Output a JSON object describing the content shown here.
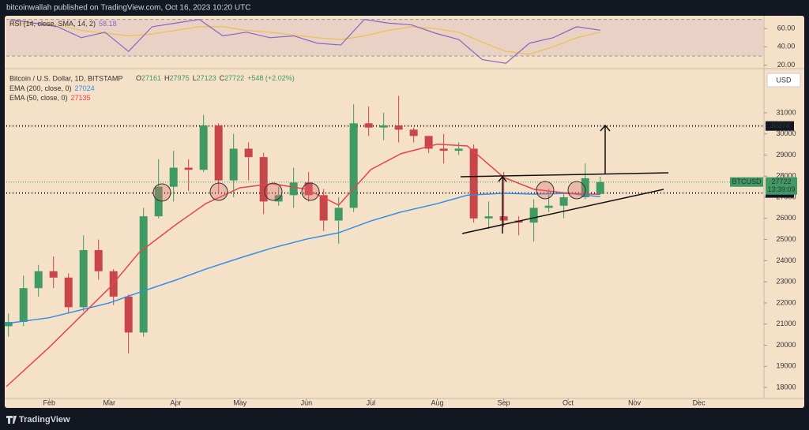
{
  "header": "bitcoinwallah published on TradingView.com, Oct 16, 2023 10:20 UTC",
  "footer": "TradingView",
  "chart_data": [
    {
      "type": "candlestick",
      "title": "Bitcoin / U.S. Dollar, 1D, BITSTAMP",
      "ohlc": [
        {
          "label": "O",
          "value": 27161
        },
        {
          "label": "H",
          "value": 27975
        },
        {
          "label": "L",
          "value": 27123
        },
        {
          "label": "C",
          "value": 27722
        }
      ],
      "change": "+548 (+2.02%)",
      "currency": "USD",
      "up_color": "#3f9a64",
      "down_color": "#c8454a",
      "x": [
        12,
        19,
        26,
        33,
        40,
        47,
        54,
        61,
        68,
        75,
        82,
        89,
        96,
        103,
        110,
        117,
        124,
        131,
        138,
        145,
        152,
        159,
        166,
        173,
        180,
        187,
        194,
        201,
        208,
        215,
        222,
        229,
        236,
        243,
        250,
        257,
        264,
        271,
        281,
        288
      ],
      "open": [
        20900,
        21100,
        22700,
        23500,
        23200,
        21800,
        24500,
        23500,
        22300,
        20600,
        26100,
        27500,
        28400,
        28300,
        30400,
        27800,
        29300,
        28900,
        26800,
        27100,
        27700,
        27100,
        25900,
        26500,
        30500,
        30300,
        30400,
        30200,
        29900,
        29300,
        29200,
        29300,
        26000,
        26100,
        25900,
        25800,
        26500,
        26600,
        27000,
        27161
      ],
      "high": [
        21500,
        23300,
        23800,
        24200,
        23400,
        25200,
        25000,
        23600,
        22400,
        26500,
        28800,
        29200,
        28800,
        30900,
        30500,
        30000,
        29600,
        29100,
        27500,
        28400,
        28200,
        27400,
        27000,
        31400,
        31300,
        31000,
        31800,
        30300,
        29900,
        30000,
        29600,
        29500,
        26800,
        28200,
        26100,
        26900,
        27400,
        27200,
        28600,
        27975
      ],
      "low": [
        20400,
        20900,
        22300,
        22700,
        21500,
        21600,
        23100,
        21900,
        19600,
        20400,
        26000,
        26800,
        27300,
        28200,
        27200,
        27000,
        27800,
        26200,
        26600,
        26500,
        26800,
        25400,
        24800,
        26300,
        29900,
        29700,
        29600,
        29600,
        29100,
        28600,
        29000,
        25800,
        25500,
        25600,
        25200,
        24900,
        26300,
        26000,
        26900,
        27123
      ],
      "close": [
        21100,
        22700,
        23500,
        23200,
        21800,
        24500,
        23500,
        22300,
        20600,
        26100,
        27500,
        28400,
        28300,
        30400,
        27800,
        29300,
        28900,
        26800,
        27100,
        27700,
        27100,
        25900,
        26500,
        30500,
        30300,
        30400,
        30200,
        29900,
        29300,
        29200,
        29300,
        26000,
        26100,
        25900,
        25800,
        26500,
        26600,
        27000,
        27900,
        27722
      ],
      "series": [
        {
          "name": "EMA (200, close, 0)",
          "last_value": 27024,
          "color": "#2f8fe8",
          "x": [
            11,
            31,
            59,
            73,
            90,
            104,
            120,
            135,
            151,
            166,
            181,
            195,
            212,
            226,
            243,
            257,
            273,
            288
          ],
          "values": [
            21026,
            21300,
            22000,
            22500,
            23080,
            23600,
            24130,
            24600,
            25020,
            25320,
            25880,
            26300,
            26700,
            27100,
            27190,
            27150,
            27190,
            27024
          ]
        },
        {
          "name": "EMA (50, close, 0)",
          "last_value": 27135,
          "color": "#e8434e",
          "x": [
            11,
            31,
            59,
            73,
            90,
            104,
            120,
            135,
            151,
            166,
            181,
            195,
            212,
            226,
            243,
            257,
            273,
            288
          ],
          "values": [
            18040,
            19900,
            22700,
            24390,
            25700,
            26700,
            27450,
            27640,
            27380,
            26630,
            28310,
            29060,
            29510,
            29430,
            27940,
            27380,
            27190,
            27135
          ]
        }
      ],
      "hlines": [
        30374,
        27203
      ],
      "last_price": {
        "symbol": "BTCUSD",
        "value": 27722,
        "countdown": "13:39:09"
      },
      "xlim": [
        11,
        364
      ],
      "ylim": [
        17480,
        33050
      ],
      "xticks": [
        {
          "value": 31,
          "label": "Feb"
        },
        {
          "value": 59,
          "label": "Mar"
        },
        {
          "value": 90,
          "label": "Apr"
        },
        {
          "value": 120,
          "label": "May"
        },
        {
          "value": 151,
          "label": "Jun"
        },
        {
          "value": 181,
          "label": "Jul"
        },
        {
          "value": 212,
          "label": "Aug"
        },
        {
          "value": 243,
          "label": "Sep"
        },
        {
          "value": 273,
          "label": "Oct"
        },
        {
          "value": 304,
          "label": "Nov"
        },
        {
          "value": 334,
          "label": "Dec"
        }
      ],
      "yticks": [
        18000,
        19000,
        20000,
        21000,
        22000,
        23000,
        24000,
        25000,
        26000,
        27000,
        28000,
        29000,
        30000,
        31000
      ]
    },
    {
      "type": "line",
      "title": "RSI (14, close, SMA, 14, 2)",
      "last_value": 58.18,
      "band": [
        30,
        70
      ],
      "band_color": "#e3c6c4",
      "x": [
        13,
        24,
        35,
        46,
        57,
        68,
        79,
        90,
        101,
        112,
        123,
        134,
        145,
        156,
        167,
        178,
        189,
        200,
        211,
        222,
        233,
        244,
        255,
        266,
        277,
        288
      ],
      "series": [
        {
          "name": "RSI",
          "color": "#8a63c9",
          "values": [
            70,
            66,
            62,
            50,
            56,
            35,
            62,
            66,
            70,
            52,
            56,
            50,
            52,
            44,
            42,
            70,
            66,
            64,
            55,
            48,
            26,
            22,
            44,
            50,
            62,
            58.18
          ]
        },
        {
          "name": "SMA",
          "color": "#e6c34a",
          "values": [
            65,
            66,
            64,
            58,
            55,
            52,
            54,
            58,
            62,
            62,
            58,
            56,
            53,
            50,
            48,
            52,
            58,
            62,
            60,
            56,
            45,
            35,
            32,
            40,
            50,
            56
          ]
        }
      ],
      "xlim": [
        11,
        364
      ],
      "ylim": [
        17,
        74
      ],
      "yticks": [
        {
          "value": 20,
          "label": "20.00"
        },
        {
          "value": 40,
          "label": "40.00"
        },
        {
          "value": 60,
          "label": "60.00"
        }
      ]
    }
  ]
}
